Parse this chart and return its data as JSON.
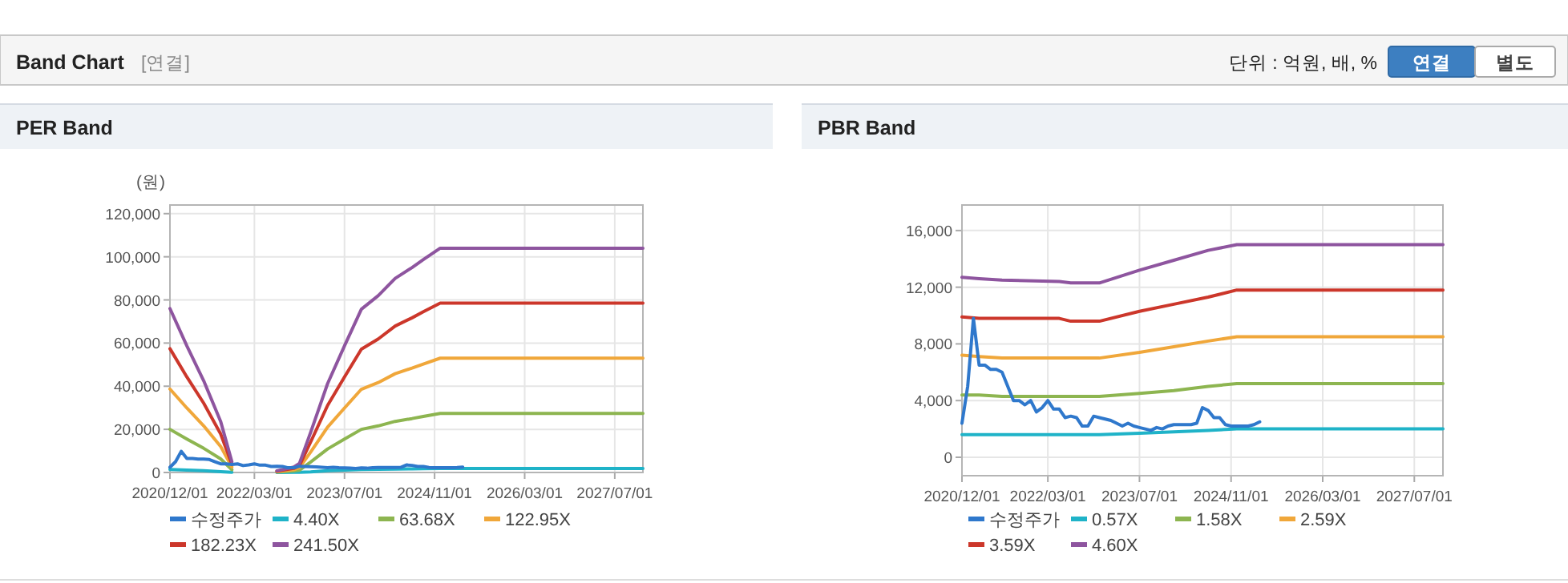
{
  "chart_data": [
    {
      "type": "line",
      "title": "PER Band",
      "ylabel": "(원)",
      "annotations": [
        "Band Chart",
        "[연결]",
        "단위 : 억원, 배, %",
        "연결",
        "별도"
      ],
      "xlim": [
        "2020-12-01",
        "2027-12-01"
      ],
      "ylim": [
        0,
        124000
      ],
      "xticks": [
        {
          "value": "2020-12-01",
          "label": "2020/12/01"
        },
        {
          "value": "2022-03-01",
          "label": "2022/03/01"
        },
        {
          "value": "2023-07-01",
          "label": "2023/07/01"
        },
        {
          "value": "2024-11-01",
          "label": "2024/11/01"
        },
        {
          "value": "2026-03-01",
          "label": "2026/03/01"
        },
        {
          "value": "2027-07-01",
          "label": "2027/07/01"
        }
      ],
      "yticks": [
        {
          "value": 0,
          "label": "0"
        },
        {
          "value": 20000,
          "label": "20,000"
        },
        {
          "value": 40000,
          "label": "40,000"
        },
        {
          "value": 60000,
          "label": "60,000"
        },
        {
          "value": 80000,
          "label": "80,000"
        },
        {
          "value": 100000,
          "label": "100,000"
        },
        {
          "value": 120000,
          "label": "120,000"
        }
      ],
      "grid": true,
      "legend": "bottom",
      "marker": "none",
      "line_style": "solid",
      "series": [
        {
          "name": "수정주가",
          "color": "#2f78cc",
          "x": [
            "2020-12",
            "2021-01",
            "2021-02",
            "2021-03",
            "2021-04",
            "2021-05",
            "2021-06",
            "2021-07",
            "2021-08",
            "2021-09",
            "2021-10",
            "2021-11",
            "2021-12",
            "2022-01",
            "2022-02",
            "2022-03",
            "2022-04",
            "2022-05",
            "2022-06",
            "2022-07",
            "2022-08",
            "2022-09",
            "2022-10",
            "2022-11",
            "2022-12",
            "2023-01",
            "2023-02",
            "2023-03",
            "2023-04",
            "2023-05",
            "2023-06",
            "2023-07",
            "2023-08",
            "2023-09",
            "2023-10",
            "2023-11",
            "2023-12",
            "2024-01",
            "2024-02",
            "2024-03",
            "2024-04",
            "2024-05",
            "2024-06",
            "2024-07",
            "2024-08",
            "2024-09",
            "2024-10",
            "2024-11",
            "2024-12",
            "2025-01",
            "2025-02",
            "2025-03",
            "2025-04"
          ],
          "values": [
            2400,
            5000,
            9800,
            6500,
            6500,
            6200,
            6200,
            6000,
            5000,
            4000,
            4000,
            3700,
            4000,
            3200,
            3500,
            4000,
            3400,
            3400,
            2800,
            2900,
            2800,
            2200,
            2200,
            2900,
            2800,
            2700,
            2600,
            2400,
            2200,
            2400,
            2200,
            2100,
            2000,
            1900,
            2100,
            2000,
            2200,
            2300,
            2300,
            2300,
            2300,
            2400,
            3500,
            3300,
            2800,
            2800,
            2300,
            2200,
            2200,
            2200,
            2200,
            2300,
            2500
          ]
        },
        {
          "name": "4.40X",
          "color": "#1fb3c8",
          "x": [
            "2020-12",
            "2021-03",
            "2021-06",
            "2021-09",
            "2021-11",
            "2022-03",
            "2022-07",
            "2022-10",
            "2022-11",
            "2023-01",
            "2023-04",
            "2023-07",
            "2023-10",
            "2024-01",
            "2024-04",
            "2024-07",
            "2024-09",
            "2024-12",
            "2027-12"
          ],
          "values": [
            1400,
            1100,
            800,
            400,
            100,
            null,
            0,
            100,
            100,
            300,
            800,
            1100,
            1400,
            1500,
            1600,
            1700,
            1800,
            1900,
            1900
          ]
        },
        {
          "name": "63.68X",
          "color": "#8db550",
          "x": [
            "2020-12",
            "2021-03",
            "2021-06",
            "2021-09",
            "2021-11",
            "2022-03",
            "2022-07",
            "2022-10",
            "2022-11",
            "2023-01",
            "2023-04",
            "2023-07",
            "2023-10",
            "2024-01",
            "2024-04",
            "2024-07",
            "2024-09",
            "2024-12",
            "2027-12"
          ],
          "values": [
            20000,
            15500,
            11200,
            6300,
            1300,
            null,
            200,
            700,
            1100,
            4900,
            10900,
            15500,
            20000,
            21600,
            23700,
            25000,
            26000,
            27400,
            27400
          ]
        },
        {
          "name": "122.95X",
          "color": "#f0a73a",
          "x": [
            "2020-12",
            "2021-03",
            "2021-06",
            "2021-09",
            "2021-11",
            "2022-03",
            "2022-07",
            "2022-10",
            "2022-11",
            "2023-01",
            "2023-04",
            "2023-07",
            "2023-10",
            "2024-01",
            "2024-04",
            "2024-07",
            "2024-09",
            "2024-12",
            "2027-12"
          ],
          "values": [
            38700,
            29900,
            21600,
            12100,
            2500,
            null,
            400,
            1300,
            2200,
            9500,
            21000,
            29900,
            38600,
            41700,
            45800,
            48400,
            50300,
            53000,
            53000
          ]
        },
        {
          "name": "182.23X",
          "color": "#cc372b",
          "x": [
            "2020-12",
            "2021-03",
            "2021-06",
            "2021-09",
            "2021-11",
            "2022-03",
            "2022-07",
            "2022-10",
            "2022-11",
            "2023-01",
            "2023-04",
            "2023-07",
            "2023-10",
            "2024-01",
            "2024-04",
            "2024-07",
            "2024-09",
            "2024-12",
            "2027-12"
          ],
          "values": [
            57400,
            44300,
            32100,
            17900,
            3800,
            null,
            600,
            1900,
            3200,
            14200,
            31100,
            44300,
            57200,
            61900,
            67900,
            71700,
            74500,
            78500,
            78500
          ]
        },
        {
          "name": "241.50X",
          "color": "#8e559f",
          "x": [
            "2020-12",
            "2021-03",
            "2021-06",
            "2021-09",
            "2021-11",
            "2022-03",
            "2022-07",
            "2022-10",
            "2022-11",
            "2023-01",
            "2023-04",
            "2023-07",
            "2023-10",
            "2024-01",
            "2024-04",
            "2024-07",
            "2024-09",
            "2024-12",
            "2027-12"
          ],
          "values": [
            76000,
            58700,
            42500,
            23700,
            5000,
            null,
            800,
            2500,
            4200,
            18700,
            41200,
            58700,
            75700,
            82000,
            90000,
            95000,
            98700,
            104000,
            104000
          ]
        }
      ]
    },
    {
      "type": "line",
      "title": "PBR Band",
      "xlim": [
        "2020-12-01",
        "2027-12-01"
      ],
      "ylim": [
        -1300,
        17800
      ],
      "xticks": [
        {
          "value": "2020-12-01",
          "label": "2020/12/01"
        },
        {
          "value": "2022-03-01",
          "label": "2022/03/01"
        },
        {
          "value": "2023-07-01",
          "label": "2023/07/01"
        },
        {
          "value": "2024-11-01",
          "label": "2024/11/01"
        },
        {
          "value": "2026-03-01",
          "label": "2026/03/01"
        },
        {
          "value": "2027-07-01",
          "label": "2027/07/01"
        }
      ],
      "yticks": [
        {
          "value": 0,
          "label": "0"
        },
        {
          "value": 4000,
          "label": "4,000"
        },
        {
          "value": 8000,
          "label": "8,000"
        },
        {
          "value": 12000,
          "label": "12,000"
        },
        {
          "value": 16000,
          "label": "16,000"
        }
      ],
      "grid": true,
      "legend": "bottom",
      "marker": "none",
      "line_style": "solid",
      "series": [
        {
          "name": "수정주가",
          "color": "#2f78cc",
          "x": [
            "2020-12",
            "2021-01",
            "2021-02",
            "2021-03",
            "2021-04",
            "2021-05",
            "2021-06",
            "2021-07",
            "2021-08",
            "2021-09",
            "2021-10",
            "2021-11",
            "2021-12",
            "2022-01",
            "2022-02",
            "2022-03",
            "2022-04",
            "2022-05",
            "2022-06",
            "2022-07",
            "2022-08",
            "2022-09",
            "2022-10",
            "2022-11",
            "2022-12",
            "2023-01",
            "2023-02",
            "2023-03",
            "2023-04",
            "2023-05",
            "2023-06",
            "2023-07",
            "2023-08",
            "2023-09",
            "2023-10",
            "2023-11",
            "2023-12",
            "2024-01",
            "2024-02",
            "2024-03",
            "2024-04",
            "2024-05",
            "2024-06",
            "2024-07",
            "2024-08",
            "2024-09",
            "2024-10",
            "2024-11",
            "2024-12",
            "2025-01",
            "2025-02",
            "2025-03",
            "2025-04"
          ],
          "values": [
            2400,
            5000,
            9800,
            6500,
            6500,
            6200,
            6200,
            6000,
            5000,
            4000,
            4000,
            3700,
            4000,
            3200,
            3500,
            4000,
            3400,
            3400,
            2800,
            2900,
            2800,
            2200,
            2200,
            2900,
            2800,
            2700,
            2600,
            2400,
            2200,
            2400,
            2200,
            2100,
            2000,
            1900,
            2100,
            2000,
            2200,
            2300,
            2300,
            2300,
            2300,
            2400,
            3500,
            3300,
            2800,
            2800,
            2300,
            2200,
            2200,
            2200,
            2200,
            2300,
            2500
          ]
        },
        {
          "name": "0.57X",
          "color": "#1fb3c8",
          "x": [
            "2020-12",
            "2021-03",
            "2021-07",
            "2022-05",
            "2022-07",
            "2022-12",
            "2023-07",
            "2024-01",
            "2024-07",
            "2024-12",
            "2027-12"
          ],
          "values": [
            1600,
            1600,
            1600,
            1600,
            1600,
            1600,
            1700,
            1800,
            1900,
            2000,
            2000
          ]
        },
        {
          "name": "1.58X",
          "color": "#8db550",
          "x": [
            "2020-12",
            "2021-03",
            "2021-07",
            "2022-05",
            "2022-07",
            "2022-12",
            "2023-07",
            "2024-01",
            "2024-07",
            "2024-12",
            "2027-12"
          ],
          "values": [
            4400,
            4400,
            4300,
            4300,
            4300,
            4300,
            4500,
            4700,
            5000,
            5200,
            5200
          ]
        },
        {
          "name": "2.59X",
          "color": "#f0a73a",
          "x": [
            "2020-12",
            "2021-03",
            "2021-07",
            "2022-05",
            "2022-07",
            "2022-12",
            "2023-07",
            "2024-01",
            "2024-07",
            "2024-12",
            "2027-12"
          ],
          "values": [
            7200,
            7100,
            7000,
            7000,
            7000,
            7000,
            7400,
            7800,
            8200,
            8500,
            8500
          ]
        },
        {
          "name": "3.59X",
          "color": "#cc372b",
          "x": [
            "2020-12",
            "2021-03",
            "2021-07",
            "2022-05",
            "2022-07",
            "2022-12",
            "2023-07",
            "2024-01",
            "2024-07",
            "2024-12",
            "2027-12"
          ],
          "values": [
            9900,
            9800,
            9800,
            9800,
            9600,
            9600,
            10300,
            10800,
            11300,
            11800,
            11800
          ]
        },
        {
          "name": "4.60X",
          "color": "#8e559f",
          "x": [
            "2020-12",
            "2021-03",
            "2021-07",
            "2022-05",
            "2022-07",
            "2022-12",
            "2023-07",
            "2024-01",
            "2024-07",
            "2024-12",
            "2027-12"
          ],
          "values": [
            12700,
            12600,
            12500,
            12400,
            12300,
            12300,
            13200,
            13900,
            14600,
            15000,
            15000
          ]
        }
      ]
    }
  ]
}
